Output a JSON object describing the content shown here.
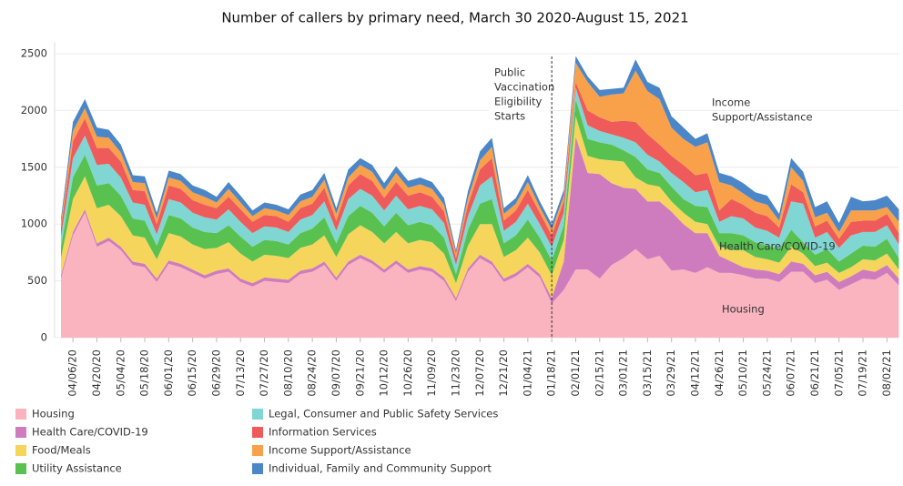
{
  "chart_data": {
    "type": "stacked-area",
    "title": "Number of callers by primary need, March 30 2020-August 15, 2021",
    "categories": [
      null,
      "04/06/20",
      null,
      "04/20/20",
      null,
      "05/04/20",
      null,
      "05/18/20",
      null,
      "06/01/20",
      null,
      "06/15/20",
      null,
      "06/29/20",
      null,
      "07/13/20",
      null,
      "07/27/20",
      null,
      "08/10/20",
      null,
      "08/24/20",
      null,
      "09/07/20",
      null,
      "09/21/20",
      null,
      "10/12/20",
      null,
      "10/26/20",
      null,
      "11/09/20",
      null,
      "11/23/20",
      null,
      "12/07/20",
      null,
      "12/21/20",
      null,
      "01/04/21",
      null,
      "01/18/21",
      null,
      "02/01/21",
      null,
      "02/15/21",
      null,
      "03/01/21",
      null,
      "03/15/21",
      null,
      "03/29/21",
      null,
      "04/12/21",
      null,
      "04/26/21",
      null,
      "05/10/21",
      null,
      "05/24/21",
      null,
      "06/07/21",
      null,
      "06/21/21",
      null,
      "07/05/21",
      null,
      "07/19/21",
      null,
      "08/02/21",
      null
    ],
    "series": [
      {
        "name": "Housing",
        "color": "#f9b4c0",
        "values": [
          520,
          900,
          1100,
          800,
          850,
          770,
          640,
          620,
          490,
          650,
          620,
          570,
          520,
          560,
          580,
          490,
          450,
          500,
          490,
          480,
          560,
          580,
          640,
          500,
          640,
          700,
          650,
          570,
          650,
          570,
          600,
          580,
          500,
          320,
          580,
          700,
          640,
          490,
          540,
          620,
          530,
          300,
          420,
          600,
          600,
          520,
          640,
          700,
          780,
          690,
          720,
          590,
          600,
          570,
          620,
          570,
          570,
          550,
          520,
          520,
          490,
          580,
          580,
          480,
          510,
          420,
          470,
          520,
          510,
          570,
          460
        ]
      },
      {
        "name": "Health Care/COVID-19",
        "color": "#cf7cbf",
        "values": [
          30,
          30,
          30,
          30,
          30,
          30,
          30,
          30,
          30,
          30,
          30,
          30,
          30,
          30,
          30,
          30,
          30,
          30,
          30,
          30,
          30,
          30,
          30,
          30,
          30,
          30,
          30,
          30,
          30,
          30,
          30,
          30,
          30,
          30,
          30,
          30,
          30,
          30,
          30,
          30,
          30,
          50,
          250,
          1170,
          850,
          920,
          720,
          620,
          530,
          510,
          480,
          520,
          400,
          350,
          300,
          150,
          100,
          70,
          80,
          70,
          70,
          90,
          70,
          70,
          70,
          70,
          70,
          80,
          70,
          70,
          60
        ]
      },
      {
        "name": "Food/Meals",
        "color": "#f6d55c",
        "values": [
          150,
          290,
          290,
          310,
          290,
          270,
          230,
          230,
          170,
          240,
          240,
          220,
          230,
          200,
          230,
          220,
          190,
          200,
          200,
          190,
          200,
          210,
          230,
          180,
          240,
          260,
          250,
          230,
          250,
          230,
          230,
          230,
          210,
          130,
          200,
          270,
          330,
          190,
          200,
          230,
          190,
          200,
          190,
          180,
          150,
          130,
          200,
          230,
          100,
          150,
          130,
          90,
          100,
          100,
          80,
          80,
          100,
          150,
          110,
          100,
          100,
          130,
          90,
          80,
          80,
          80,
          80,
          90,
          100,
          100,
          80
        ]
      },
      {
        "name": "Utility Assistance",
        "color": "#59c150",
        "values": [
          100,
          190,
          190,
          200,
          190,
          180,
          150,
          150,
          120,
          160,
          160,
          150,
          150,
          130,
          150,
          150,
          130,
          130,
          130,
          120,
          130,
          140,
          160,
          120,
          160,
          170,
          170,
          150,
          170,
          160,
          160,
          150,
          140,
          80,
          140,
          180,
          220,
          120,
          130,
          160,
          130,
          130,
          130,
          150,
          150,
          150,
          140,
          100,
          180,
          130,
          120,
          130,
          120,
          140,
          150,
          120,
          150,
          130,
          130,
          120,
          120,
          150,
          100,
          100,
          120,
          100,
          120,
          120,
          120,
          130,
          100
        ]
      },
      {
        "name": "Legal, Consumer and Public Safety Services",
        "color": "#80d6d2",
        "values": [
          90,
          170,
          170,
          180,
          170,
          160,
          140,
          140,
          100,
          140,
          140,
          130,
          130,
          120,
          140,
          130,
          120,
          120,
          120,
          110,
          120,
          120,
          140,
          110,
          150,
          150,
          150,
          140,
          150,
          140,
          140,
          140,
          130,
          80,
          120,
          160,
          200,
          110,
          120,
          140,
          120,
          120,
          110,
          100,
          120,
          100,
          90,
          110,
          130,
          130,
          100,
          120,
          150,
          120,
          150,
          100,
          150,
          150,
          130,
          130,
          100,
          250,
          340,
          150,
          150,
          120,
          160,
          120,
          130,
          120,
          120
        ]
      },
      {
        "name": "Information Services",
        "color": "#ef5a5a",
        "values": [
          80,
          150,
          150,
          150,
          140,
          140,
          110,
          120,
          90,
          120,
          120,
          110,
          110,
          100,
          110,
          110,
          100,
          100,
          100,
          90,
          100,
          100,
          120,
          90,
          120,
          130,
          130,
          110,
          120,
          120,
          120,
          110,
          100,
          60,
          100,
          140,
          160,
          90,
          100,
          120,
          100,
          100,
          100,
          50,
          130,
          120,
          110,
          150,
          180,
          180,
          150,
          150,
          150,
          150,
          150,
          100,
          150,
          120,
          130,
          130,
          90,
          150,
          100,
          100,
          100,
          80,
          120,
          100,
          100,
          100,
          100
        ]
      },
      {
        "name": "Income Support/Assistance",
        "color": "#f9a04b",
        "values": [
          40,
          90,
          90,
          100,
          90,
          80,
          70,
          70,
          50,
          70,
          70,
          70,
          70,
          50,
          70,
          60,
          50,
          60,
          50,
          60,
          60,
          60,
          70,
          60,
          70,
          80,
          80,
          70,
          80,
          70,
          70,
          70,
          60,
          40,
          60,
          80,
          100,
          60,
          60,
          70,
          50,
          50,
          50,
          170,
          250,
          180,
          240,
          240,
          450,
          380,
          400,
          250,
          230,
          250,
          270,
          250,
          120,
          100,
          100,
          100,
          60,
          150,
          100,
          80,
          70,
          60,
          100,
          90,
          90,
          60,
          100
        ]
      },
      {
        "name": "Individual, Family and Community Support",
        "color": "#4a86c8",
        "values": [
          40,
          80,
          80,
          80,
          70,
          70,
          60,
          60,
          50,
          60,
          60,
          60,
          60,
          50,
          60,
          60,
          50,
          50,
          50,
          50,
          60,
          60,
          60,
          50,
          70,
          60,
          60,
          60,
          60,
          60,
          60,
          60,
          60,
          30,
          60,
          80,
          80,
          50,
          50,
          60,
          50,
          50,
          50,
          60,
          50,
          60,
          50,
          50,
          100,
          80,
          100,
          100,
          100,
          70,
          80,
          80,
          80,
          90,
          80,
          80,
          60,
          80,
          80,
          90,
          100,
          80,
          120,
          80,
          90,
          100,
          110
        ]
      }
    ],
    "ylim": [
      0,
      2600
    ],
    "yticks": [
      0,
      500,
      1000,
      1500,
      2000,
      2500
    ],
    "grid": true,
    "annotations": [
      {
        "lines": [
          "Public",
          "Vaccination",
          "Eligibility",
          "Starts"
        ],
        "event_date": "01/18/21"
      },
      {
        "lines": [
          "Income",
          "Support/Assistance"
        ]
      },
      {
        "lines": [
          "Health Care/COVID-19"
        ]
      },
      {
        "lines": [
          "Housing"
        ]
      }
    ]
  }
}
